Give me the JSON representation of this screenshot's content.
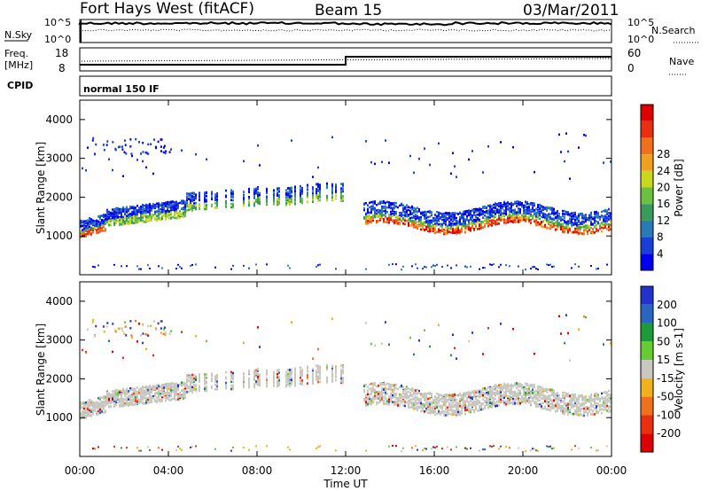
{
  "header": {
    "station": "Fort Hays West (fitACF)",
    "beam": "Beam 15",
    "date": "03/Mar/2011"
  },
  "top_panels": {
    "nsky_label": "N.Sky",
    "nsearch_label": "N.Search",
    "nsky_ticks": [
      "10^5",
      "10^0"
    ],
    "nsearch_ticks": [
      "10^5",
      "10^0"
    ],
    "freq_label": "Freq.",
    "freq_unit": "[MHz]",
    "freq_ticks": [
      "18",
      "8"
    ],
    "nave_label": "Nave",
    "nave_ticks": [
      "60",
      "0"
    ],
    "cpid_label": "CPID",
    "cpid_value": "normal 150 IF"
  },
  "chart_data": [
    {
      "type": "heatmap",
      "name": "power",
      "ylabel": "Slant Range [km]",
      "ylim": [
        0,
        4500
      ],
      "yticks": [
        "1000",
        "2000",
        "3000",
        "4000"
      ],
      "colorbar_label": "Power [dB]",
      "colorbar_ticks": [
        "4",
        "8",
        "12",
        "16",
        "20",
        "24",
        "28"
      ],
      "colors": [
        "#0000ee",
        "#1a3fd6",
        "#2a7ab6",
        "#3a9a5a",
        "#6cc040",
        "#c8d820",
        "#f0a020",
        "#f07020",
        "#e83010",
        "#dd0000"
      ]
    },
    {
      "type": "heatmap",
      "name": "velocity",
      "ylabel": "Slant Range [km]",
      "ylim": [
        0,
        4500
      ],
      "yticks": [
        "1000",
        "2000",
        "3000",
        "4000"
      ],
      "colorbar_label": "Velocity [m s-1]",
      "colorbar_ticks": [
        "200",
        "100",
        "50",
        "15",
        "-15",
        "-50",
        "-100",
        "-200"
      ],
      "colors": [
        "#2233cc",
        "#2a66c0",
        "#1e9a3a",
        "#66cc33",
        "#c8c8c0",
        "#f0b020",
        "#f07020",
        "#e83010",
        "#dd0000"
      ]
    }
  ],
  "x_axis": {
    "label": "Time UT",
    "ticks": [
      "00:00",
      "04:00",
      "08:00",
      "12:00",
      "16:00",
      "20:00",
      "00:00"
    ]
  }
}
